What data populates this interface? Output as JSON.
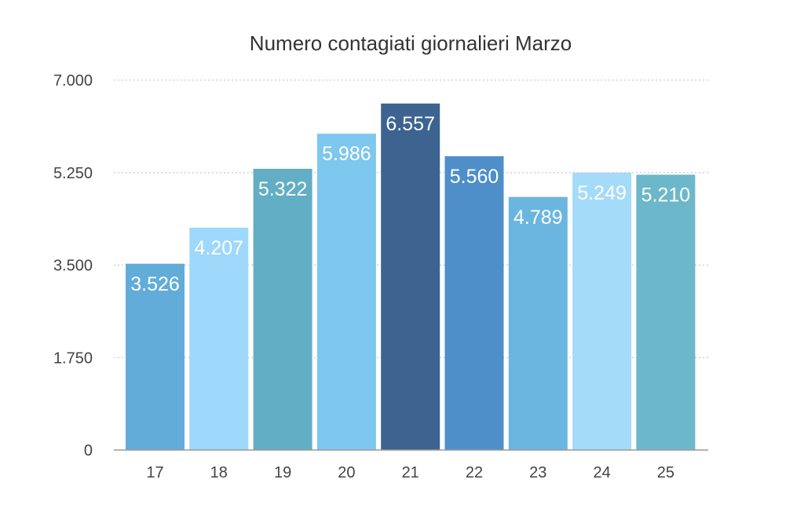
{
  "chart_data": {
    "type": "bar",
    "title": "Numero contagiati giornalieri Marzo",
    "xlabel": "",
    "ylabel": "",
    "categories": [
      "17",
      "18",
      "19",
      "20",
      "21",
      "22",
      "23",
      "24",
      "25"
    ],
    "values": [
      3526,
      4207,
      5322,
      5986,
      6557,
      5560,
      4789,
      5249,
      5210
    ],
    "value_labels": [
      "3.526",
      "4.207",
      "5.322",
      "5.986",
      "6.557",
      "5.560",
      "4.789",
      "5.249",
      "5.210"
    ],
    "ylim": [
      0,
      7000
    ],
    "yticks": [
      0,
      1750,
      3500,
      5250,
      7000
    ],
    "ytick_labels": [
      "0",
      "1.750",
      "3.500",
      "5.250",
      "7.000"
    ],
    "grid": true,
    "legend": "none",
    "bar_colors": [
      "#62acd9",
      "#9ed8fa",
      "#62aec4",
      "#7ec7ee",
      "#3d6490",
      "#4e8fc9",
      "#6ab6e0",
      "#a4dbf9",
      "#6db7cb"
    ]
  }
}
